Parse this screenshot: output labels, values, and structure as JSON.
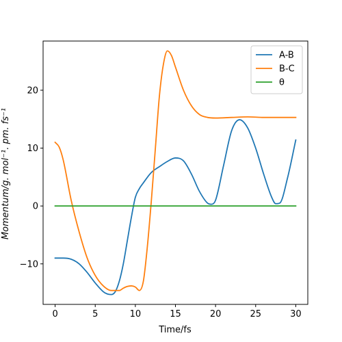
{
  "chart_data": {
    "type": "line",
    "xlabel": "Time/fs",
    "ylabel": "Momentum/g. mol⁻¹. pm. fs⁻¹",
    "xlim": [
      -1.5,
      31.5
    ],
    "ylim": [
      -17,
      28.5
    ],
    "xticks": [
      0,
      5,
      10,
      15,
      20,
      25,
      30
    ],
    "xtick_labels": [
      "0",
      "5",
      "10",
      "15",
      "20",
      "25",
      "30"
    ],
    "yticks": [
      -10,
      0,
      10,
      20
    ],
    "ytick_labels": [
      "−10",
      "0",
      "10",
      "20"
    ],
    "grid": false,
    "legend_position": "top-right",
    "series": [
      {
        "name": "A-B",
        "color": "#1f77b4",
        "x": [
          0,
          1,
          2,
          3,
          4,
          5,
          6,
          6.5,
          7,
          7.5,
          8,
          8.5,
          9,
          9.5,
          10,
          10.5,
          11,
          12,
          13,
          14,
          15,
          16,
          17,
          18,
          19,
          19.5,
          20,
          21,
          22,
          23,
          24,
          25,
          26,
          27,
          27.5,
          28,
          29,
          30
        ],
        "y": [
          -9,
          -9,
          -9.2,
          -10,
          -11.5,
          -13.3,
          -14.8,
          -15.2,
          -15.3,
          -14.8,
          -13,
          -10,
          -6,
          -2,
          1.5,
          3,
          4,
          5.8,
          6.8,
          7.7,
          8.3,
          7.8,
          5.5,
          2.5,
          0.5,
          0.3,
          1,
          7,
          13,
          14.9,
          13.5,
          10,
          5.5,
          1.5,
          0.4,
          0.5,
          5,
          11.4
        ]
      },
      {
        "name": "B-C",
        "color": "#ff7f0e",
        "x": [
          0,
          0.5,
          1,
          2,
          3,
          4,
          5,
          6,
          7,
          8,
          8.5,
          9,
          9.5,
          10,
          10.5,
          11,
          11.5,
          12,
          12.5,
          13,
          13.5,
          14,
          14.5,
          15,
          16,
          17,
          18,
          19,
          20,
          22,
          24,
          26,
          28,
          30
        ],
        "y": [
          11,
          10.2,
          8,
          1,
          -4.5,
          -9,
          -12,
          -13.8,
          -14.6,
          -14.6,
          -14.2,
          -13.9,
          -13.8,
          -14,
          -14.6,
          -13,
          -7,
          1,
          10,
          19,
          24.5,
          26.8,
          26,
          24,
          20,
          17.3,
          15.8,
          15.3,
          15.2,
          15.3,
          15.4,
          15.3,
          15.3,
          15.3
        ]
      },
      {
        "name": "θ",
        "color": "#2ca02c",
        "x": [
          0,
          30
        ],
        "y": [
          0,
          0
        ]
      }
    ]
  }
}
